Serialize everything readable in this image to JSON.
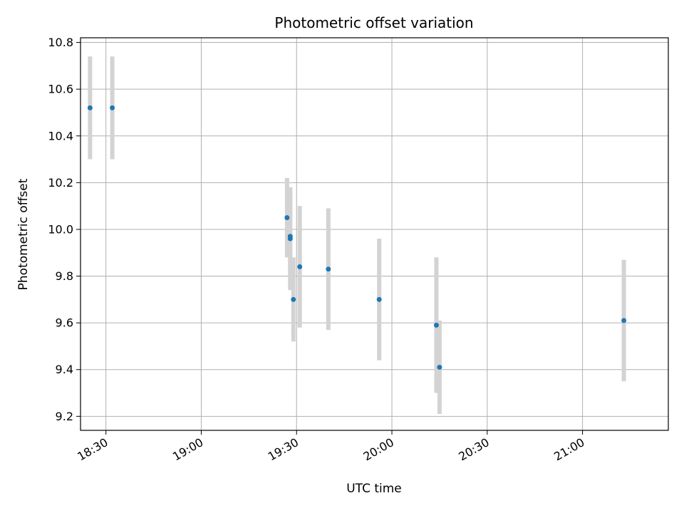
{
  "chart_data": {
    "type": "scatter",
    "title": "Photometric offset variation",
    "xlabel": "UTC time",
    "ylabel": "Photometric offset",
    "x_ticks": [
      "18:30",
      "19:00",
      "19:30",
      "20:00",
      "20:30",
      "21:00"
    ],
    "y_ticks": [
      "9.2",
      "9.4",
      "9.6",
      "9.8",
      "10.0",
      "10.2",
      "10.4",
      "10.6",
      "10.8"
    ],
    "xlim": [
      "18:22",
      "21:27"
    ],
    "ylim": [
      9.14,
      10.82
    ],
    "grid": true,
    "marker_color": "#1f77b4",
    "errorbar_color": "#d3d3d3",
    "points": [
      {
        "t": "18:25",
        "y": 10.52,
        "err": 0.22
      },
      {
        "t": "18:32",
        "y": 10.52,
        "err": 0.22
      },
      {
        "t": "19:27",
        "y": 10.05,
        "err": 0.17
      },
      {
        "t": "19:28",
        "y": 9.97,
        "err": 0.21
      },
      {
        "t": "19:28",
        "y": 9.96,
        "err": 0.22
      },
      {
        "t": "19:29",
        "y": 9.7,
        "err": 0.18
      },
      {
        "t": "19:31",
        "y": 9.84,
        "err": 0.26
      },
      {
        "t": "19:40",
        "y": 9.83,
        "err": 0.26
      },
      {
        "t": "19:56",
        "y": 9.7,
        "err": 0.26
      },
      {
        "t": "20:14",
        "y": 9.59,
        "err": 0.29
      },
      {
        "t": "20:15",
        "y": 9.41,
        "err": 0.2
      },
      {
        "t": "21:13",
        "y": 9.61,
        "err": 0.26
      }
    ]
  }
}
